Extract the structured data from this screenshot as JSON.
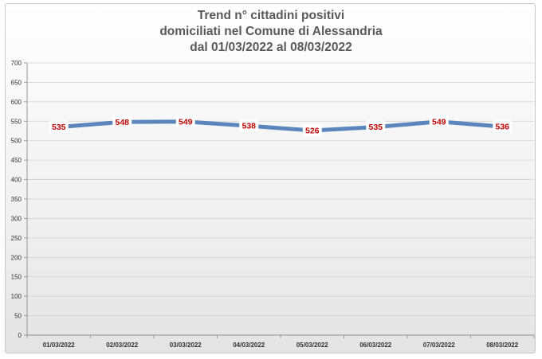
{
  "chart_data": {
    "type": "line",
    "title_lines": [
      "Trend n° cittadini positivi",
      "domiciliati nel Comune di Alessandria",
      "dal 01/03/2022 al 08/03/2022"
    ],
    "categories": [
      "01/03/2022",
      "02/03/2022",
      "03/03/2022",
      "04/03/2022",
      "05/03/2022",
      "06/03/2022",
      "07/03/2022",
      "08/03/2022"
    ],
    "series": [
      {
        "values": [
          535,
          548,
          549,
          538,
          526,
          535,
          549,
          536
        ]
      }
    ],
    "y_ticks": [
      0,
      50,
      100,
      150,
      200,
      250,
      300,
      350,
      400,
      450,
      500,
      550,
      600,
      650,
      700
    ],
    "ylim": [
      0,
      700
    ],
    "grid": true,
    "legend": "none",
    "colors": {
      "line": "#5b86bd",
      "data_label": "#c00000",
      "title": "#595959"
    }
  }
}
